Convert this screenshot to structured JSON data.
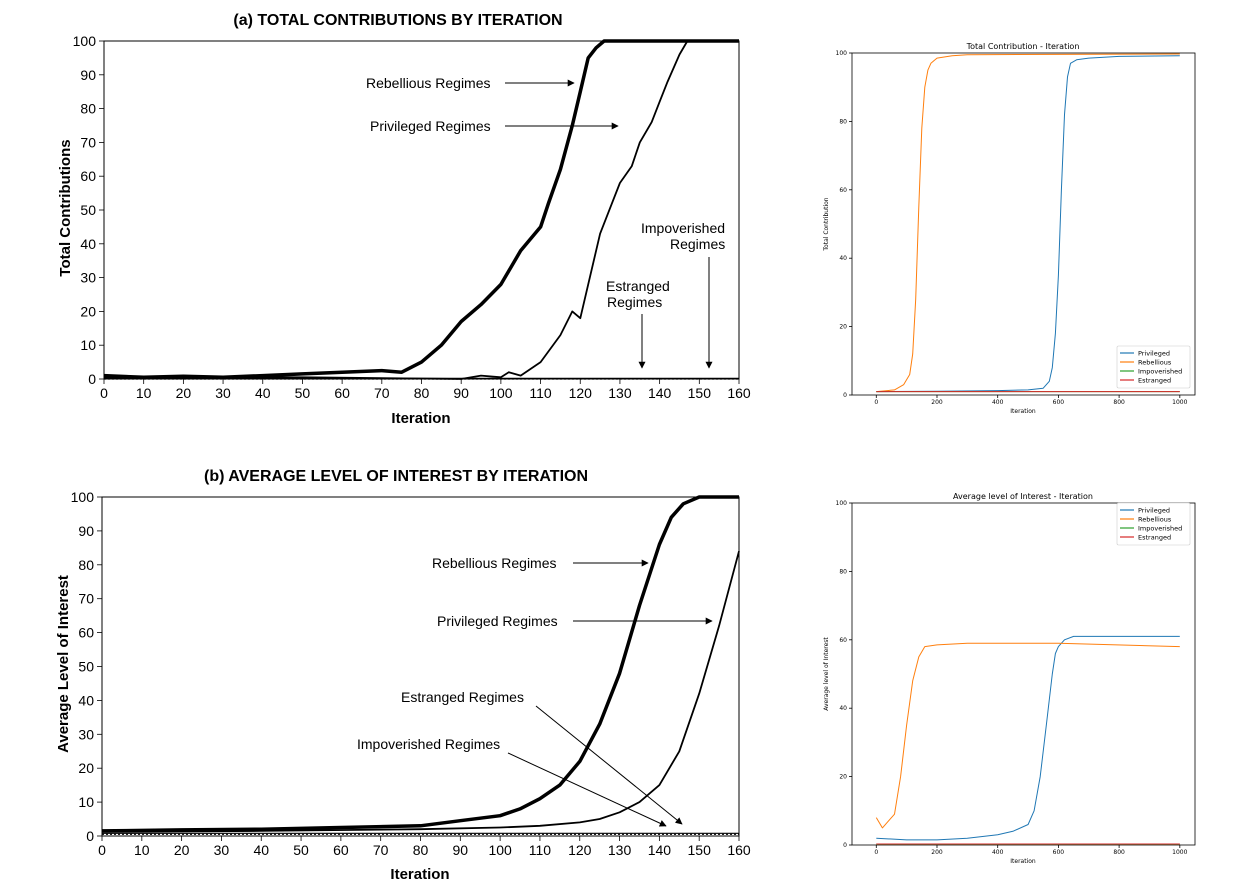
{
  "chart_data": [
    {
      "type": "line",
      "title": "(a) TOTAL CONTRIBUTIONS BY ITERATION",
      "xlabel": "Iteration",
      "ylabel": "Total Contributions",
      "xlim": [
        0,
        160
      ],
      "ylim": [
        0,
        100
      ],
      "xticks": [
        "0",
        "10",
        "20",
        "30",
        "40",
        "50",
        "60",
        "70",
        "80",
        "90",
        "100",
        "110",
        "120",
        "130",
        "140",
        "150",
        "160"
      ],
      "yticks": [
        "0",
        "10",
        "20",
        "30",
        "40",
        "50",
        "60",
        "70",
        "80",
        "90",
        "100"
      ],
      "grid": false,
      "annotations": [
        {
          "text": "Rebellious Regimes"
        },
        {
          "text": "Privileged Regimes"
        },
        {
          "text": "Impoverished"
        },
        {
          "text": "Regimes"
        },
        {
          "text": "Estranged"
        },
        {
          "text": "Regimes"
        }
      ],
      "series": [
        {
          "name": "Rebellious Regimes",
          "x": [
            0,
            10,
            20,
            30,
            40,
            50,
            60,
            70,
            75,
            80,
            85,
            90,
            95,
            100,
            105,
            110,
            112,
            115,
            118,
            120,
            122,
            124,
            126,
            130,
            140,
            150,
            160
          ],
          "y": [
            1,
            0.5,
            0.8,
            0.5,
            1,
            1.5,
            2,
            2.5,
            2,
            5,
            10,
            17,
            22,
            28,
            38,
            45,
            52,
            62,
            75,
            85,
            95,
            98,
            100,
            100,
            100,
            100,
            100
          ]
        },
        {
          "name": "Privileged Regimes",
          "x": [
            0,
            50,
            90,
            95,
            100,
            102,
            105,
            110,
            115,
            118,
            120,
            122,
            125,
            128,
            130,
            133,
            135,
            138,
            140,
            142,
            145,
            147,
            150,
            160
          ],
          "y": [
            0.5,
            0.5,
            0,
            1,
            0.5,
            2,
            1,
            5,
            13,
            20,
            18,
            28,
            43,
            52,
            58,
            63,
            70,
            76,
            82,
            88,
            96,
            100,
            100,
            100
          ]
        },
        {
          "name": "Estranged Regimes",
          "x": [
            0,
            160
          ],
          "y": [
            0,
            0
          ]
        },
        {
          "name": "Impoverished Regimes",
          "x": [
            0,
            160
          ],
          "y": [
            0.2,
            0.2
          ]
        }
      ]
    },
    {
      "type": "line",
      "title": "Total Contribution - Iteration",
      "xlabel": "Iteration",
      "ylabel": "Total Contribution",
      "xlim": [
        -80,
        1050
      ],
      "ylim": [
        0,
        100
      ],
      "xticks": [
        "0",
        "200",
        "400",
        "600",
        "800",
        "1000"
      ],
      "yticks": [
        "0",
        "20",
        "40",
        "60",
        "80",
        "100"
      ],
      "legend": "bottom-right",
      "series": [
        {
          "name": "Privileged",
          "color": "#1f77b4",
          "x": [
            0,
            200,
            400,
            500,
            550,
            570,
            580,
            590,
            600,
            610,
            620,
            630,
            640,
            660,
            700,
            800,
            1000
          ],
          "y": [
            1,
            1.1,
            1.3,
            1.5,
            2,
            4,
            8,
            18,
            35,
            60,
            82,
            93,
            97,
            98,
            98.5,
            99,
            99.2
          ]
        },
        {
          "name": "Rebellious",
          "color": "#ff7f0e",
          "x": [
            0,
            60,
            90,
            110,
            120,
            130,
            140,
            150,
            160,
            170,
            180,
            200,
            250,
            300,
            1000
          ],
          "y": [
            1,
            1.5,
            3,
            6,
            12,
            28,
            55,
            78,
            90,
            95,
            97,
            98.5,
            99.2,
            99.5,
            99.7
          ]
        },
        {
          "name": "Impoverished",
          "color": "#2ca02c",
          "x": [
            0,
            1000
          ],
          "y": [
            1,
            1
          ]
        },
        {
          "name": "Estranged",
          "color": "#d62728",
          "x": [
            0,
            1000
          ],
          "y": [
            1,
            1
          ]
        }
      ]
    },
    {
      "type": "line",
      "title": "(b) AVERAGE LEVEL OF INTEREST BY ITERATION",
      "xlabel": "Iteration",
      "ylabel": "Average Level of Interest",
      "xlim": [
        0,
        160
      ],
      "ylim": [
        0,
        100
      ],
      "xticks": [
        "0",
        "10",
        "20",
        "30",
        "40",
        "50",
        "60",
        "70",
        "80",
        "90",
        "100",
        "110",
        "120",
        "130",
        "140",
        "150",
        "160"
      ],
      "yticks": [
        "0",
        "10",
        "20",
        "30",
        "40",
        "50",
        "60",
        "70",
        "80",
        "90",
        "100"
      ],
      "grid": false,
      "annotations": [
        {
          "text": "Rebellious Regimes"
        },
        {
          "text": "Privileged Regimes"
        },
        {
          "text": "Estranged Regimes"
        },
        {
          "text": "Impoverished Regimes"
        }
      ],
      "series": [
        {
          "name": "Rebellious Regimes",
          "x": [
            0,
            20,
            40,
            60,
            80,
            90,
            100,
            105,
            110,
            115,
            120,
            125,
            130,
            135,
            140,
            143,
            146,
            150,
            160
          ],
          "y": [
            1.5,
            1.8,
            2,
            2.5,
            3,
            4.5,
            6,
            8,
            11,
            15,
            22,
            33,
            48,
            68,
            86,
            94,
            98,
            100,
            100
          ]
        },
        {
          "name": "Privileged Regimes",
          "x": [
            0,
            40,
            80,
            100,
            110,
            120,
            125,
            130,
            135,
            140,
            145,
            150,
            155,
            160
          ],
          "y": [
            1.2,
            1.5,
            2,
            2.5,
            3,
            4,
            5,
            7,
            10,
            15,
            25,
            42,
            62,
            84
          ]
        },
        {
          "name": "Estranged Regimes",
          "x": [
            0,
            160
          ],
          "y": [
            0.5,
            0.5
          ]
        },
        {
          "name": "Impoverished Regimes",
          "x": [
            0,
            160
          ],
          "y": [
            0.8,
            0.8
          ]
        }
      ]
    },
    {
      "type": "line",
      "title": "Average level of Interest - Iteration",
      "xlabel": "Iteration",
      "ylabel": "Average level of Interest",
      "xlim": [
        -80,
        1050
      ],
      "ylim": [
        0,
        100
      ],
      "xticks": [
        "0",
        "200",
        "400",
        "600",
        "800",
        "1000"
      ],
      "yticks": [
        "0",
        "20",
        "40",
        "60",
        "80",
        "100"
      ],
      "legend": "top-right",
      "series": [
        {
          "name": "Privileged",
          "color": "#1f77b4",
          "x": [
            0,
            100,
            200,
            300,
            400,
            450,
            500,
            520,
            540,
            560,
            580,
            590,
            600,
            620,
            650,
            700,
            800,
            1000
          ],
          "y": [
            2,
            1.5,
            1.5,
            2,
            3,
            4,
            6,
            10,
            20,
            35,
            50,
            56,
            58,
            60,
            61,
            61,
            61,
            61
          ]
        },
        {
          "name": "Rebellious",
          "color": "#ff7f0e",
          "x": [
            0,
            20,
            40,
            60,
            80,
            100,
            120,
            140,
            160,
            200,
            300,
            600,
            1000
          ],
          "y": [
            8,
            5,
            7,
            9,
            20,
            35,
            48,
            55,
            58,
            58.5,
            59,
            59,
            58
          ]
        },
        {
          "name": "Impoverished",
          "color": "#2ca02c",
          "x": [
            0,
            1000
          ],
          "y": [
            0.2,
            0.2
          ]
        },
        {
          "name": "Estranged",
          "color": "#d62728",
          "x": [
            0,
            1000
          ],
          "y": [
            0.3,
            0.3
          ]
        }
      ]
    }
  ]
}
